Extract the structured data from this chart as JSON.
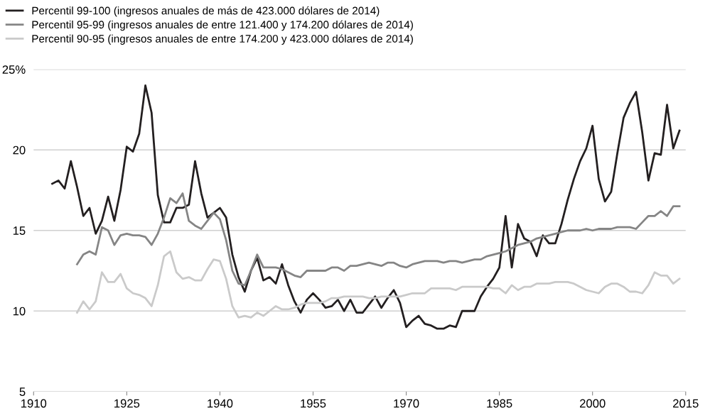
{
  "chart_data": {
    "type": "line",
    "xlim": [
      1910,
      2015
    ],
    "xticks": [
      1910,
      1925,
      1940,
      1955,
      1970,
      1985,
      2000,
      2015
    ],
    "ylim": [
      5,
      25
    ],
    "yticks": [
      5,
      10,
      15,
      20,
      {
        "value": 25,
        "label": "25%"
      }
    ],
    "grid": "y",
    "legend": "top left",
    "line_style": "solid",
    "marker": "none",
    "series": [
      {
        "name": "Percentil 99-100 (ingresos anuales de más de 423.000 dólares de 2014)",
        "color": "#231f20",
        "x": [
          1913,
          1914,
          1915,
          1916,
          1917,
          1918,
          1919,
          1920,
          1921,
          1922,
          1923,
          1924,
          1925,
          1926,
          1927,
          1928,
          1929,
          1930,
          1931,
          1932,
          1933,
          1934,
          1935,
          1936,
          1937,
          1938,
          1939,
          1940,
          1941,
          1942,
          1943,
          1944,
          1945,
          1946,
          1947,
          1948,
          1949,
          1950,
          1951,
          1952,
          1953,
          1954,
          1955,
          1956,
          1957,
          1958,
          1959,
          1960,
          1961,
          1962,
          1963,
          1964,
          1965,
          1966,
          1967,
          1968,
          1969,
          1970,
          1971,
          1972,
          1973,
          1974,
          1975,
          1976,
          1977,
          1978,
          1979,
          1980,
          1981,
          1982,
          1983,
          1984,
          1985,
          1986,
          1987,
          1988,
          1989,
          1990,
          1991,
          1992,
          1993,
          1994,
          1995,
          1996,
          1997,
          1998,
          1999,
          2000,
          2001,
          2002,
          2003,
          2004,
          2005,
          2006,
          2007,
          2008,
          2009,
          2010,
          2011,
          2012,
          2013,
          2014
        ],
        "values": [
          17.9,
          18.1,
          17.6,
          19.3,
          17.7,
          15.9,
          16.4,
          14.8,
          15.6,
          17.1,
          15.6,
          17.5,
          20.2,
          19.9,
          21.0,
          24.0,
          22.3,
          17.2,
          15.5,
          15.5,
          16.4,
          16.4,
          16.6,
          19.3,
          17.3,
          15.8,
          16.1,
          16.4,
          15.8,
          13.5,
          12.1,
          11.2,
          12.5,
          13.3,
          11.9,
          12.1,
          11.7,
          12.9,
          11.6,
          10.6,
          9.9,
          10.7,
          11.1,
          10.7,
          10.2,
          10.3,
          10.7,
          10.0,
          10.7,
          9.9,
          9.9,
          10.4,
          10.9,
          10.2,
          10.8,
          11.3,
          10.5,
          9.0,
          9.4,
          9.7,
          9.2,
          9.1,
          8.9,
          8.9,
          9.1,
          9.0,
          10.0,
          10.0,
          10.0,
          10.9,
          11.5,
          12.0,
          12.7,
          15.9,
          12.7,
          15.4,
          14.5,
          14.3,
          13.4,
          14.7,
          14.2,
          14.2,
          15.4,
          16.9,
          18.2,
          19.3,
          20.1,
          21.5,
          18.2,
          16.8,
          17.4,
          19.8,
          22.0,
          22.9,
          23.6,
          21.1,
          18.1,
          19.8,
          19.7,
          22.8,
          20.1,
          21.2
        ]
      },
      {
        "name": "Percentil 95-99 (ingresos anuales de entre 121.400 y 174.200 dólares de 2014)",
        "color": "#858585",
        "x": [
          1917,
          1918,
          1919,
          1920,
          1921,
          1922,
          1923,
          1924,
          1925,
          1926,
          1927,
          1928,
          1929,
          1930,
          1931,
          1932,
          1933,
          1934,
          1935,
          1936,
          1937,
          1938,
          1939,
          1940,
          1941,
          1942,
          1943,
          1944,
          1945,
          1946,
          1947,
          1948,
          1949,
          1950,
          1951,
          1952,
          1953,
          1954,
          1955,
          1956,
          1957,
          1958,
          1959,
          1960,
          1961,
          1962,
          1963,
          1964,
          1965,
          1966,
          1967,
          1968,
          1969,
          1970,
          1971,
          1972,
          1973,
          1974,
          1975,
          1976,
          1977,
          1978,
          1979,
          1980,
          1981,
          1982,
          1983,
          1984,
          1985,
          1986,
          1987,
          1988,
          1989,
          1990,
          1991,
          1992,
          1993,
          1994,
          1995,
          1996,
          1997,
          1998,
          1999,
          2000,
          2001,
          2002,
          2003,
          2004,
          2005,
          2006,
          2007,
          2008,
          2009,
          2010,
          2011,
          2012,
          2013,
          2014
        ],
        "values": [
          12.9,
          13.5,
          13.7,
          13.5,
          15.2,
          15.0,
          14.1,
          14.7,
          14.8,
          14.7,
          14.7,
          14.6,
          14.1,
          14.8,
          15.8,
          17.0,
          16.7,
          17.3,
          15.6,
          15.3,
          15.1,
          15.6,
          16.1,
          15.7,
          14.4,
          12.5,
          11.7,
          11.6,
          12.5,
          13.5,
          12.7,
          12.7,
          12.7,
          12.6,
          12.4,
          12.2,
          12.1,
          12.5,
          12.5,
          12.5,
          12.5,
          12.7,
          12.7,
          12.5,
          12.8,
          12.8,
          12.9,
          13.0,
          12.9,
          12.8,
          13.0,
          13.0,
          12.8,
          12.7,
          12.9,
          13.0,
          13.1,
          13.1,
          13.1,
          13.0,
          13.1,
          13.1,
          13.0,
          13.1,
          13.2,
          13.2,
          13.4,
          13.5,
          13.6,
          13.7,
          13.9,
          14.1,
          14.2,
          14.3,
          14.5,
          14.6,
          14.7,
          14.8,
          14.9,
          15.0,
          15.0,
          15.0,
          15.1,
          15.0,
          15.1,
          15.1,
          15.1,
          15.2,
          15.2,
          15.2,
          15.1,
          15.5,
          15.9,
          15.9,
          16.2,
          15.9,
          16.5,
          16.5
        ]
      },
      {
        "name": "Percentil 90-95 (ingresos anuales de entre 174.200 y 423.000 dólares de 2014)",
        "color": "#cacaca",
        "x": [
          1917,
          1918,
          1919,
          1920,
          1921,
          1922,
          1923,
          1924,
          1925,
          1926,
          1927,
          1928,
          1929,
          1930,
          1931,
          1932,
          1933,
          1934,
          1935,
          1936,
          1937,
          1938,
          1939,
          1940,
          1941,
          1942,
          1943,
          1944,
          1945,
          1946,
          1947,
          1948,
          1949,
          1950,
          1951,
          1952,
          1953,
          1954,
          1955,
          1956,
          1957,
          1958,
          1959,
          1960,
          1961,
          1962,
          1963,
          1964,
          1965,
          1966,
          1967,
          1968,
          1969,
          1970,
          1971,
          1972,
          1973,
          1974,
          1975,
          1976,
          1977,
          1978,
          1979,
          1980,
          1981,
          1982,
          1983,
          1984,
          1985,
          1986,
          1987,
          1988,
          1989,
          1990,
          1991,
          1992,
          1993,
          1994,
          1995,
          1996,
          1997,
          1998,
          1999,
          2000,
          2001,
          2002,
          2003,
          2004,
          2005,
          2006,
          2007,
          2008,
          2009,
          2010,
          2011,
          2012,
          2013,
          2014
        ],
        "values": [
          9.9,
          10.6,
          10.1,
          10.6,
          12.4,
          11.8,
          11.8,
          12.3,
          11.4,
          11.1,
          11.0,
          10.8,
          10.3,
          11.6,
          13.4,
          13.7,
          12.4,
          12.0,
          12.1,
          11.9,
          11.9,
          12.6,
          13.2,
          13.1,
          12.0,
          10.3,
          9.6,
          9.7,
          9.6,
          9.9,
          9.7,
          10.0,
          10.3,
          10.1,
          10.1,
          10.2,
          10.4,
          10.5,
          10.5,
          10.5,
          10.6,
          10.8,
          10.8,
          10.9,
          10.9,
          10.9,
          10.9,
          10.8,
          10.8,
          10.9,
          10.9,
          10.9,
          10.9,
          11.0,
          11.1,
          11.1,
          11.1,
          11.4,
          11.4,
          11.4,
          11.4,
          11.3,
          11.5,
          11.5,
          11.5,
          11.5,
          11.5,
          11.4,
          11.4,
          11.1,
          11.6,
          11.3,
          11.5,
          11.5,
          11.7,
          11.7,
          11.7,
          11.8,
          11.8,
          11.8,
          11.7,
          11.5,
          11.3,
          11.2,
          11.1,
          11.5,
          11.7,
          11.7,
          11.5,
          11.2,
          11.2,
          11.1,
          11.6,
          12.4,
          12.2,
          12.2,
          11.7,
          12.0
        ]
      }
    ]
  }
}
